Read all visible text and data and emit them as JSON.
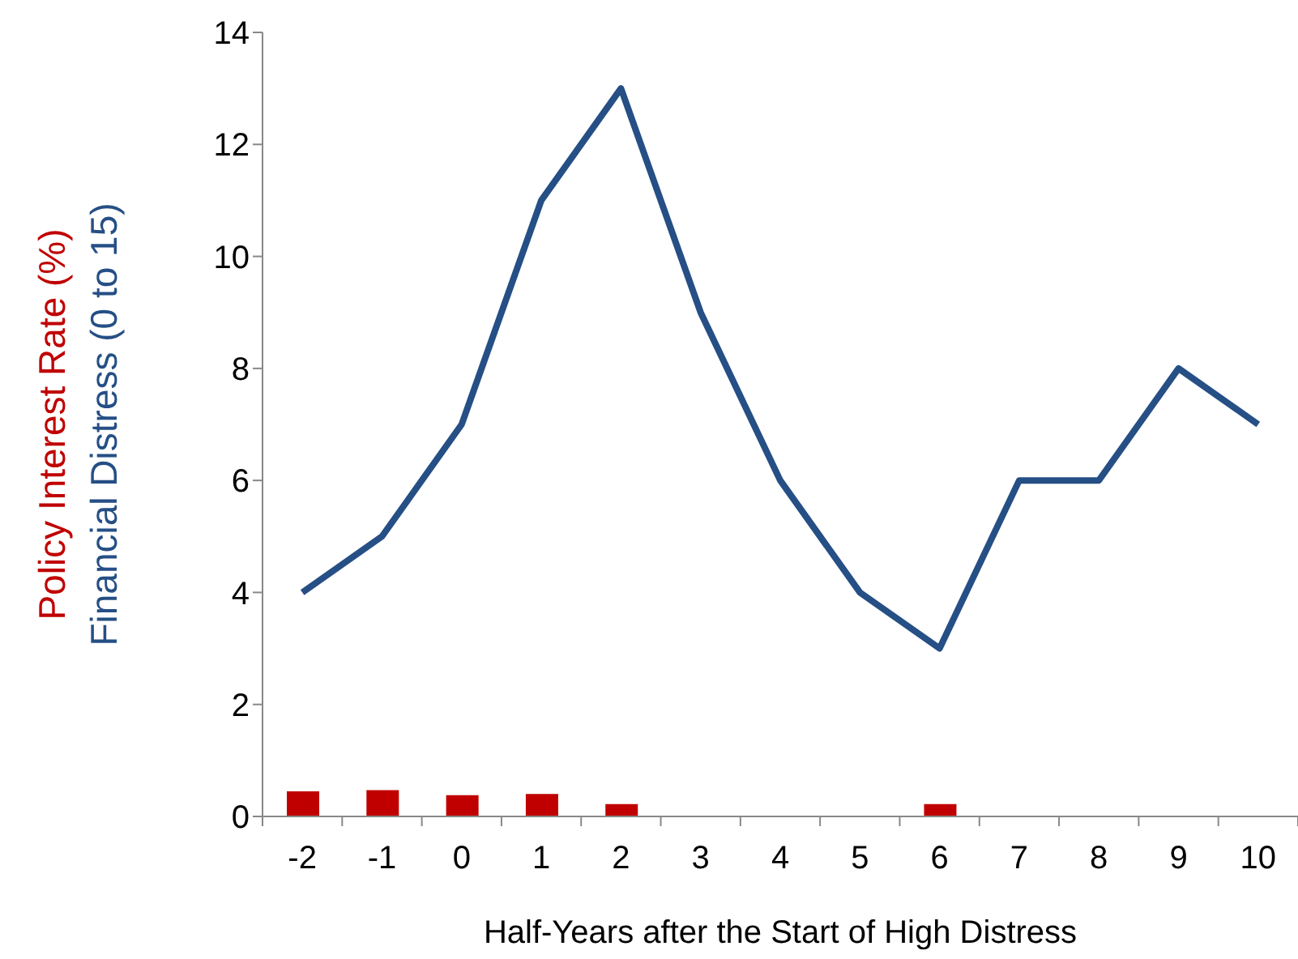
{
  "chart_data": {
    "type": "bar",
    "xlabel": "Half-Years after the Start of High Distress",
    "categories": [
      "-2",
      "-1",
      "0",
      "1",
      "2",
      "3",
      "4",
      "5",
      "6",
      "7",
      "8",
      "9",
      "10"
    ],
    "series": [
      {
        "name": "Policy Interest Rate (%)",
        "color": "#c00000",
        "values": [
          0.45,
          0.47,
          0.38,
          0.4,
          0.22,
          0,
          0,
          0,
          0.22,
          0,
          0,
          0,
          0
        ]
      },
      {
        "name": "Financial Distress (0 to 15)",
        "type": "line",
        "color": "#254f85",
        "values": [
          4,
          5,
          7,
          11,
          13,
          9,
          6,
          4,
          3,
          6,
          6,
          8,
          7
        ]
      }
    ],
    "ylim": [
      0,
      14
    ],
    "yticks": [
      0,
      2,
      4,
      6,
      8,
      10,
      12,
      14
    ],
    "legend": "left",
    "marker": "none"
  }
}
